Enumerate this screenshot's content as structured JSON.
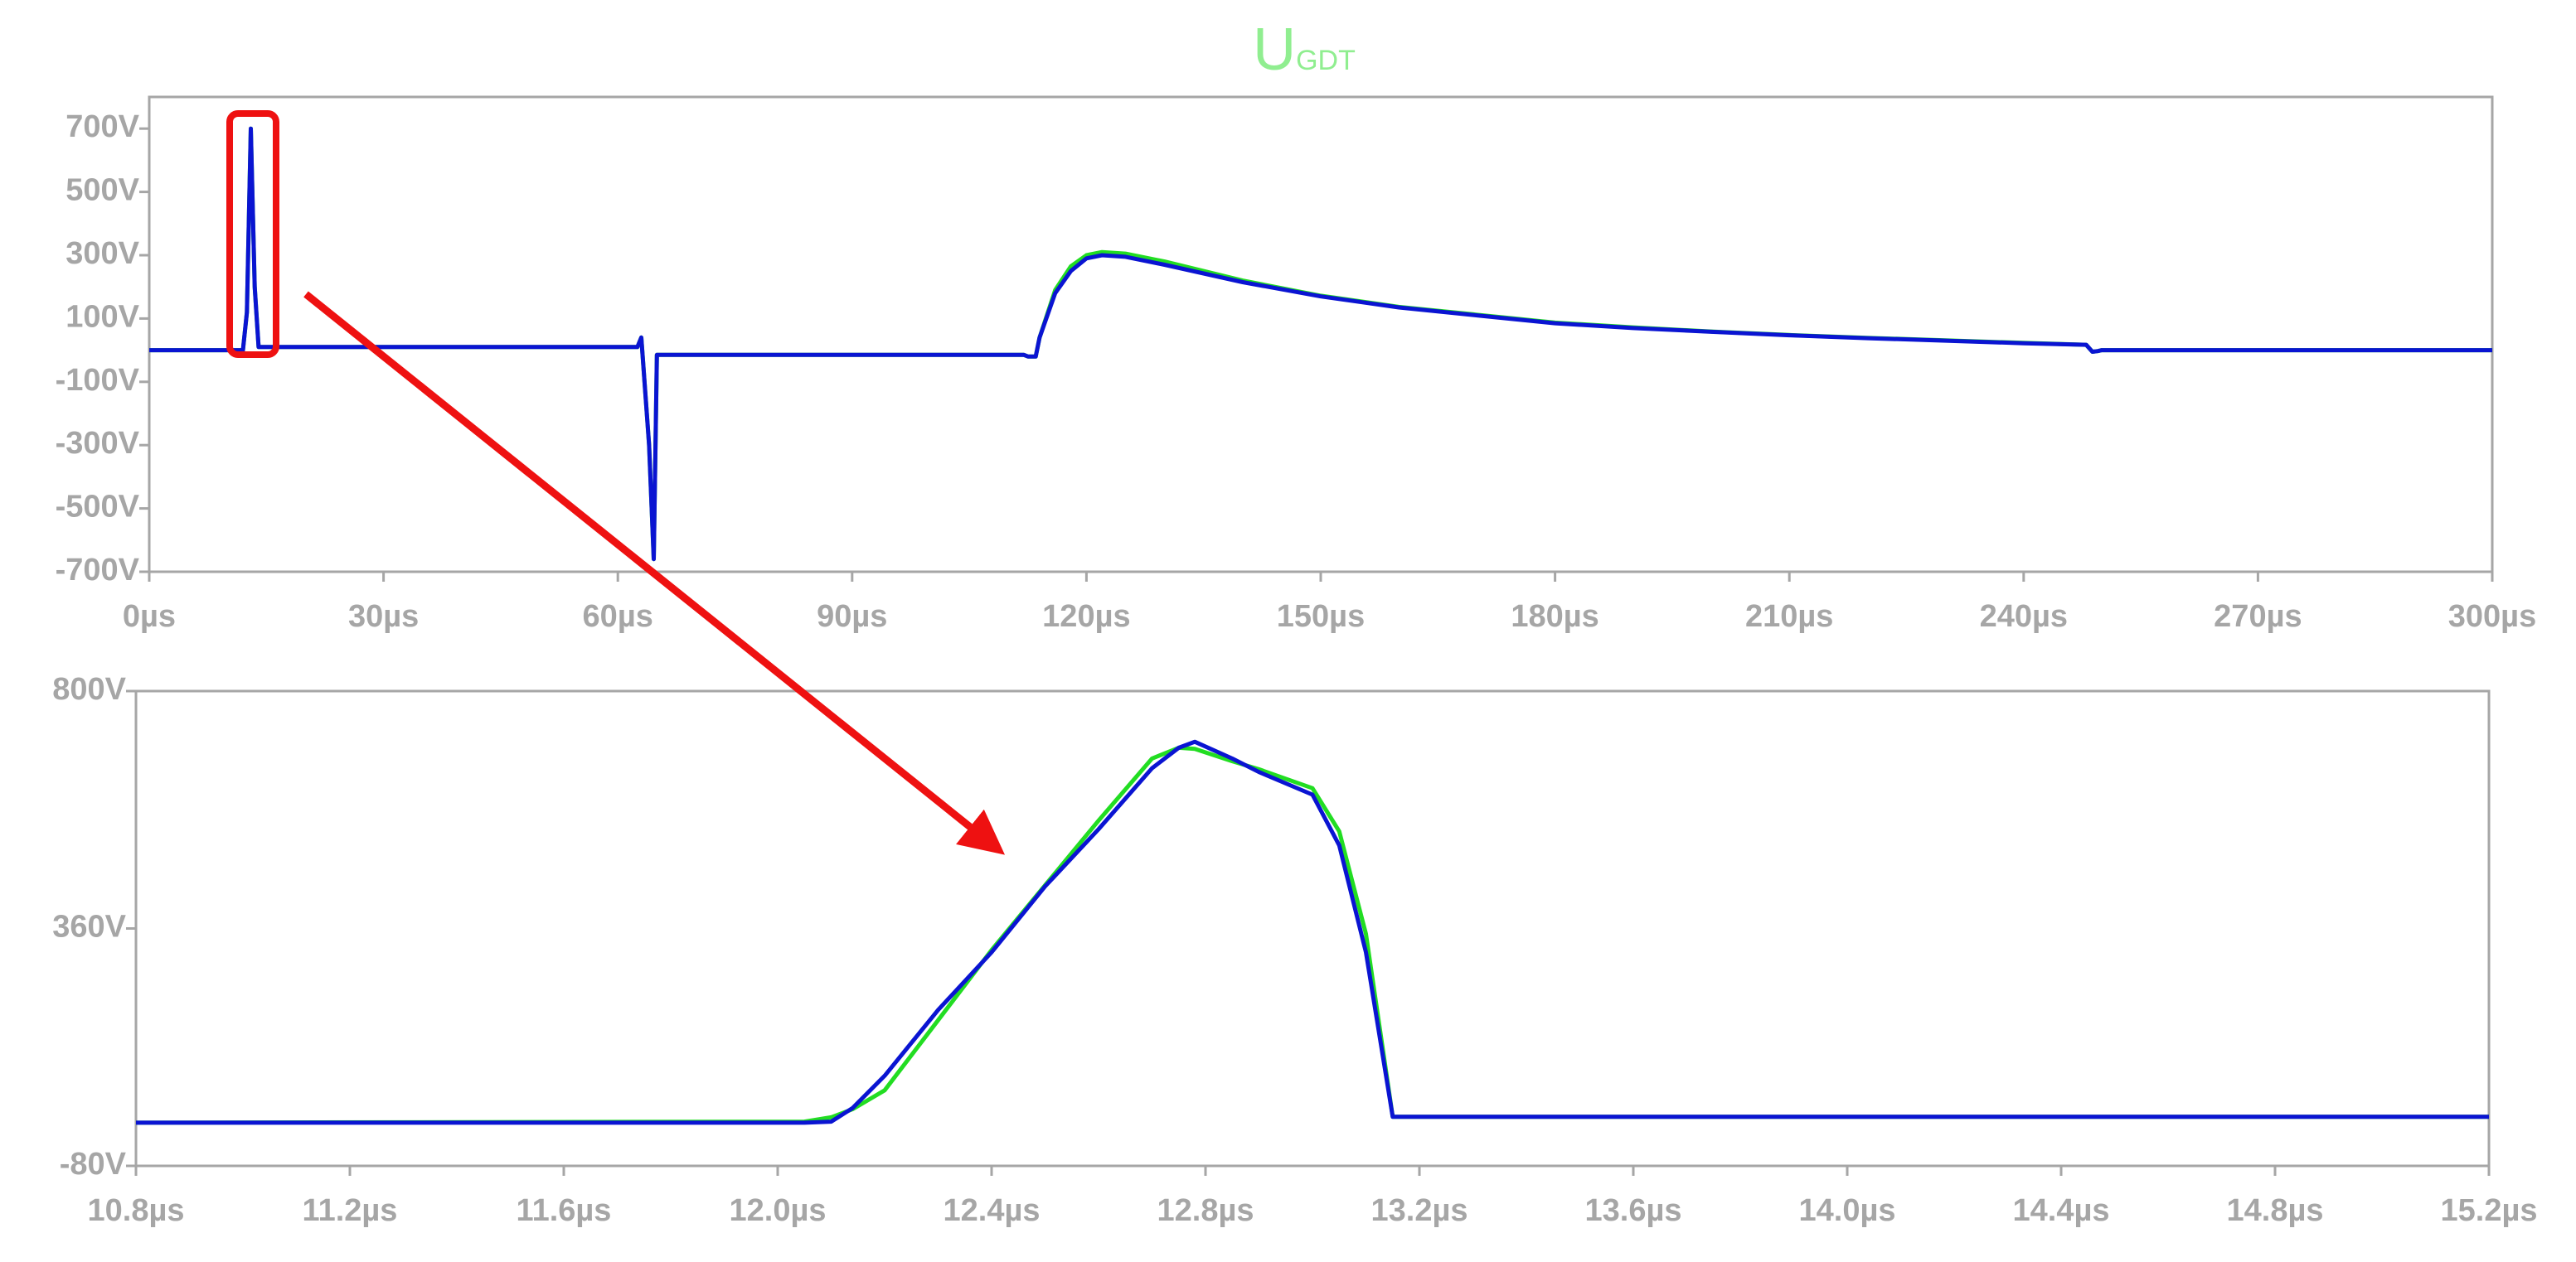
{
  "chart_data": [
    {
      "type": "line",
      "title": "U",
      "title_subscript": "GDT",
      "title_color": "#90ee90",
      "x": [
        0,
        12,
        12.5,
        13,
        13.5,
        14,
        15,
        62.5,
        63,
        64,
        64.6,
        65,
        65.5,
        112,
        112.5,
        113.5,
        114,
        116,
        118,
        120,
        122,
        125,
        130,
        140,
        150,
        160,
        170,
        180,
        190,
        200,
        210,
        220,
        230,
        240,
        248,
        248.8,
        249.5,
        250,
        260,
        280,
        300
      ],
      "series": [
        {
          "color": "#22dd22",
          "values": [
            0,
            0,
            120,
            700,
            200,
            10,
            10,
            10,
            40,
            -300,
            -660,
            -15,
            -15,
            -15,
            -20,
            -20,
            40,
            190,
            265,
            300,
            310,
            305,
            280,
            220,
            172,
            137,
            112,
            87,
            72,
            59,
            48,
            39,
            31,
            23,
            17,
            -5,
            -3,
            0,
            0,
            0,
            0
          ]
        },
        {
          "color": "#0a14d2",
          "values": [
            0,
            0,
            120,
            700,
            200,
            10,
            10,
            10,
            40,
            -300,
            -660,
            -15,
            -15,
            -15,
            -20,
            -20,
            40,
            180,
            250,
            290,
            300,
            295,
            270,
            215,
            170,
            135,
            110,
            85,
            70,
            58,
            47,
            38,
            30,
            22,
            17,
            -5,
            -3,
            0,
            0,
            0,
            0
          ]
        }
      ],
      "xlim": [
        0,
        300
      ],
      "xticks": [
        {
          "value": 0,
          "label": "0µs"
        },
        {
          "value": 30,
          "label": "30µs"
        },
        {
          "value": 60,
          "label": "60µs"
        },
        {
          "value": 90,
          "label": "90µs"
        },
        {
          "value": 120,
          "label": "120µs"
        },
        {
          "value": 150,
          "label": "150µs"
        },
        {
          "value": 180,
          "label": "180µs"
        },
        {
          "value": 210,
          "label": "210µs"
        },
        {
          "value": 240,
          "label": "240µs"
        },
        {
          "value": 270,
          "label": "270µs"
        },
        {
          "value": 300,
          "label": "300µs"
        }
      ],
      "ylim": [
        -700,
        800
      ],
      "yticks": [
        {
          "value": 700,
          "label": "700V"
        },
        {
          "value": 500,
          "label": "500V"
        },
        {
          "value": 300,
          "label": "300V"
        },
        {
          "value": 100,
          "label": "100V"
        },
        {
          "value": -100,
          "label": "-100V"
        },
        {
          "value": -300,
          "label": "-300V"
        },
        {
          "value": -500,
          "label": "-500V"
        },
        {
          "value": -700,
          "label": "-700V"
        }
      ]
    },
    {
      "type": "line",
      "x": [
        10.8,
        12.05,
        12.1,
        12.14,
        12.2,
        12.3,
        12.4,
        12.5,
        12.6,
        12.7,
        12.75,
        12.78,
        12.85,
        12.9,
        13.0,
        13.05,
        13.1,
        13.15,
        15.2
      ],
      "series": [
        {
          "color": "#22dd22",
          "values": [
            0,
            2,
            10,
            25,
            60,
            190,
            320,
            440,
            560,
            675,
            695,
            693,
            670,
            655,
            620,
            540,
            350,
            11,
            11
          ]
        },
        {
          "color": "#0a14d2",
          "values": [
            0,
            0,
            2,
            27,
            87,
            209,
            316,
            438,
            544,
            657,
            695,
            706,
            675,
            650,
            608,
            514,
            316,
            11,
            11
          ]
        }
      ],
      "xlim": [
        10.8,
        15.2
      ],
      "xticks": [
        {
          "value": 10.8,
          "label": "10.8µs"
        },
        {
          "value": 11.2,
          "label": "11.2µs"
        },
        {
          "value": 11.6,
          "label": "11.6µs"
        },
        {
          "value": 12.0,
          "label": "12.0µs"
        },
        {
          "value": 12.4,
          "label": "12.4µs"
        },
        {
          "value": 12.8,
          "label": "12.8µs"
        },
        {
          "value": 13.2,
          "label": "13.2µs"
        },
        {
          "value": 13.6,
          "label": "13.6µs"
        },
        {
          "value": 14.0,
          "label": "14.0µs"
        },
        {
          "value": 14.4,
          "label": "14.4µs"
        },
        {
          "value": 14.8,
          "label": "14.8µs"
        },
        {
          "value": 15.2,
          "label": "15.2µs"
        }
      ],
      "ylim": [
        -80,
        800
      ],
      "yticks": [
        {
          "value": 800,
          "label": "800V"
        },
        {
          "value": 360,
          "label": "360V"
        },
        {
          "value": -80,
          "label": "-80V"
        }
      ]
    }
  ]
}
